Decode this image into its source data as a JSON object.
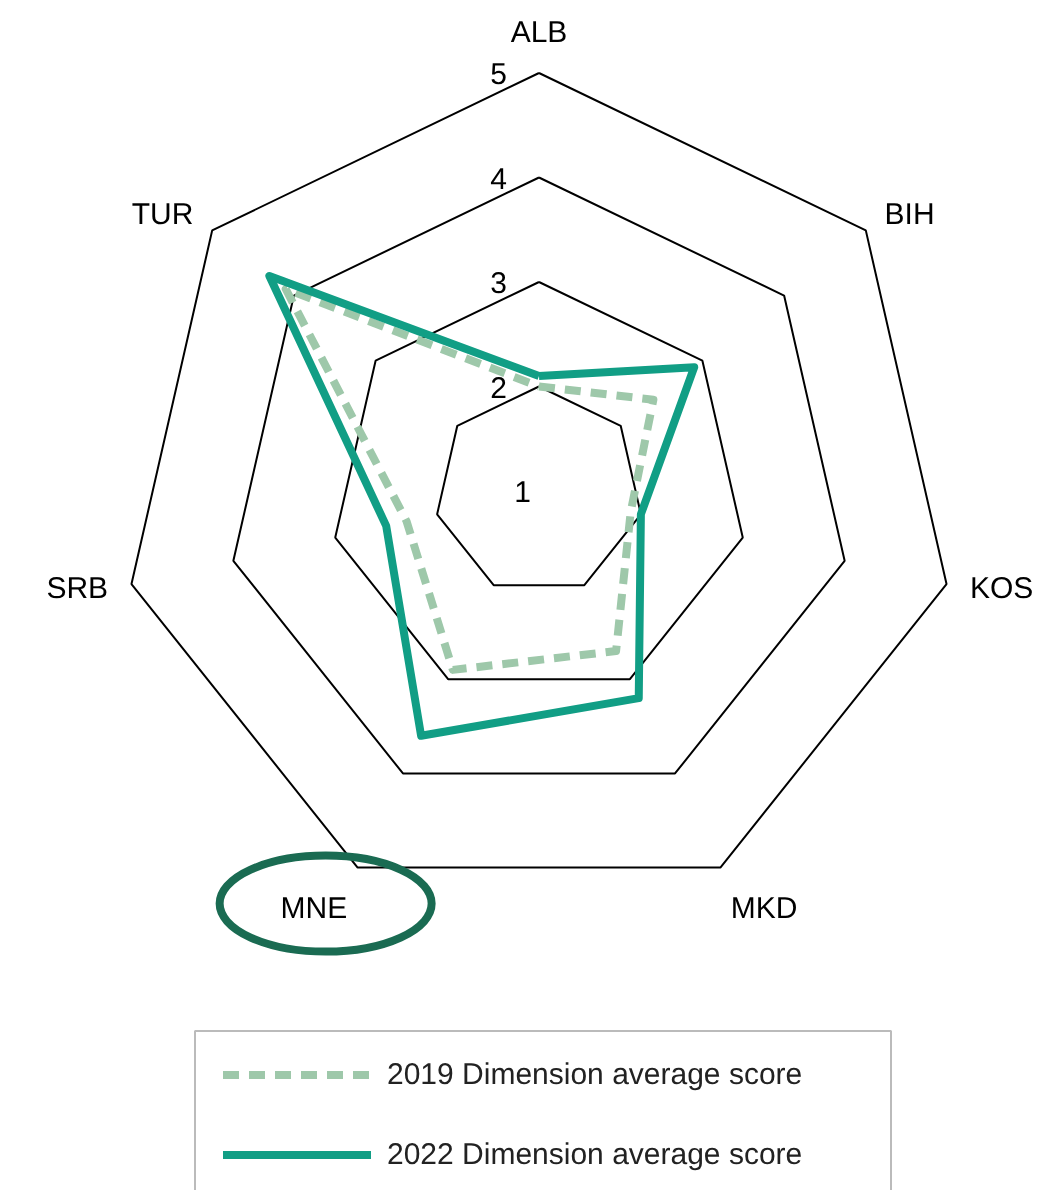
{
  "chart_data": {
    "type": "radar",
    "categories": [
      "ALB",
      "BIH",
      "KOS",
      "MKD",
      "MNE",
      "SRB",
      "TUR"
    ],
    "ylim": [
      1,
      5
    ],
    "yticks": [
      1,
      2,
      3,
      4,
      5
    ],
    "series": [
      {
        "name": "2019 Dimension average score",
        "color": "#9ec8aa",
        "line_style": "dashed",
        "values": [
          2.0,
          2.4,
          1.9,
          2.7,
          2.9,
          2.3,
          4.1
        ]
      },
      {
        "name": "2022 Dimension average score",
        "color": "#119e85",
        "line_style": "solid",
        "values": [
          2.1,
          2.9,
          2.0,
          3.2,
          3.6,
          2.5,
          4.3
        ]
      }
    ],
    "legend": "bottom"
  }
}
